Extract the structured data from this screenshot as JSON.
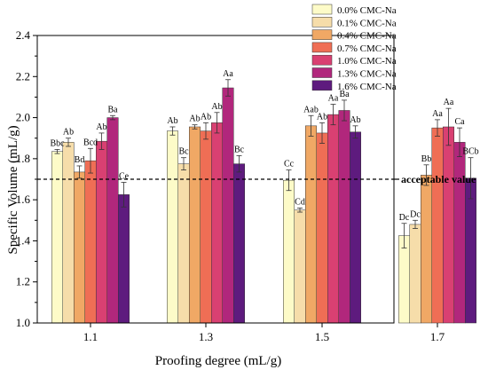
{
  "chart_data": {
    "type": "bar",
    "xlabel": "Proofing degree (mL/g)",
    "ylabel": "Specific Volume (mL/g)",
    "ylim": [
      1.0,
      2.4
    ],
    "yticks": [
      "1.0",
      "1.2",
      "1.4",
      "1.6",
      "1.8",
      "2.0",
      "2.2",
      "2.4"
    ],
    "categories": [
      "1.1",
      "1.3",
      "1.5",
      "1.7"
    ],
    "reference_line": {
      "value": 1.7,
      "label": "acceptable value"
    },
    "legend_position": "top-right",
    "series": [
      {
        "name": "0.0% CMC-Na",
        "color": "#fdfbc8",
        "values": [
          1.835,
          1.935,
          1.695,
          1.425
        ],
        "errors": [
          0.01,
          0.02,
          0.05,
          0.06
        ],
        "labels": [
          "Bbc",
          "Ab",
          "Cc",
          "Dc"
        ]
      },
      {
        "name": "0.1% CMC-Na",
        "color": "#f6ddaa",
        "values": [
          1.88,
          1.775,
          1.55,
          1.48
        ],
        "errors": [
          0.02,
          0.03,
          0.01,
          0.02
        ],
        "labels": [
          "Ab",
          "Bc",
          "Cd",
          "Dc"
        ]
      },
      {
        "name": "0.4% CMC-Na",
        "color": "#f0a865",
        "values": [
          1.735,
          1.955,
          1.96,
          1.72
        ],
        "errors": [
          0.03,
          0.01,
          0.05,
          0.05
        ],
        "labels": [
          "Bd",
          "Ab",
          "Aab",
          "Bb"
        ]
      },
      {
        "name": "0.7% CMC-Na",
        "color": "#ef6e55",
        "values": [
          1.79,
          1.935,
          1.925,
          1.95
        ],
        "errors": [
          0.06,
          0.04,
          0.05,
          0.04
        ],
        "labels": [
          "Bcd",
          "Ab",
          "Ab",
          "Aa"
        ]
      },
      {
        "name": "1.0% CMC-Na",
        "color": "#d94072",
        "values": [
          1.885,
          1.975,
          2.015,
          1.955
        ],
        "errors": [
          0.04,
          0.05,
          0.05,
          0.09
        ],
        "labels": [
          "Ab",
          "Ab",
          "Aa",
          "Aa"
        ]
      },
      {
        "name": "1.3% CMC-Na",
        "color": "#b1277c",
        "values": [
          2.0,
          2.145,
          2.035,
          1.88
        ],
        "errors": [
          0.01,
          0.04,
          0.05,
          0.07
        ],
        "labels": [
          "Ba",
          "Aa",
          "Ba",
          "Ca"
        ]
      },
      {
        "name": "1.6% CMC-Na",
        "color": "#5e1b7e",
        "values": [
          1.625,
          1.775,
          1.93,
          1.705
        ],
        "errors": [
          0.06,
          0.04,
          0.03,
          0.1
        ],
        "labels": [
          "Ce",
          "Bc",
          "Ab",
          "BCb"
        ]
      }
    ]
  }
}
